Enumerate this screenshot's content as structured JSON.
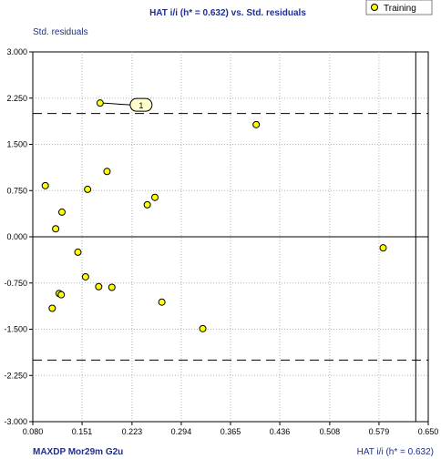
{
  "chart_data": {
    "type": "scatter",
    "title": "HAT i/i (h* = 0.632) vs. Std. residuals",
    "xlabel": "HAT i/i (h* = 0.632)",
    "ylabel": "Std. residuals",
    "footer_left": "MAXDP  Mor29m  G2u",
    "xlim": [
      0.08,
      0.65
    ],
    "ylim": [
      -3.0,
      3.0
    ],
    "x_ticks": [
      0.08,
      0.151,
      0.223,
      0.294,
      0.365,
      0.436,
      0.508,
      0.579,
      0.65
    ],
    "x_tick_labels": [
      "0.080",
      "0.151",
      "0.223",
      "0.294",
      "0.365",
      "0.436",
      "0.508",
      "0.579",
      "0.650"
    ],
    "y_ticks": [
      3.0,
      2.25,
      1.5,
      0.75,
      0.0,
      -0.75,
      -1.5,
      -2.25,
      -3.0
    ],
    "y_tick_labels": [
      "3.000",
      "2.250",
      "1.500",
      "0.750",
      "0.000",
      "-0.750",
      "-1.500",
      "-2.250",
      "-3.000"
    ],
    "grid": true,
    "legend_position": "top-right",
    "reference_lines": {
      "warning_leverage": 0.632,
      "residual_limits": [
        2.0,
        -2.0
      ],
      "zero": 0.0
    },
    "series": [
      {
        "name": "Training",
        "color": "#ffff00",
        "points": [
          {
            "x": 0.177,
            "y": 2.17,
            "label": "1"
          },
          {
            "x": 0.402,
            "y": 1.82
          },
          {
            "x": 0.187,
            "y": 1.06
          },
          {
            "x": 0.098,
            "y": 0.83
          },
          {
            "x": 0.159,
            "y": 0.77
          },
          {
            "x": 0.256,
            "y": 0.64
          },
          {
            "x": 0.245,
            "y": 0.52
          },
          {
            "x": 0.122,
            "y": 0.4
          },
          {
            "x": 0.113,
            "y": 0.13
          },
          {
            "x": 0.585,
            "y": -0.18
          },
          {
            "x": 0.145,
            "y": -0.25
          },
          {
            "x": 0.156,
            "y": -0.65
          },
          {
            "x": 0.175,
            "y": -0.81
          },
          {
            "x": 0.194,
            "y": -0.82
          },
          {
            "x": 0.118,
            "y": -0.92
          },
          {
            "x": 0.121,
            "y": -0.94
          },
          {
            "x": 0.266,
            "y": -1.06
          },
          {
            "x": 0.108,
            "y": -1.16
          },
          {
            "x": 0.325,
            "y": -1.49
          }
        ]
      }
    ]
  }
}
